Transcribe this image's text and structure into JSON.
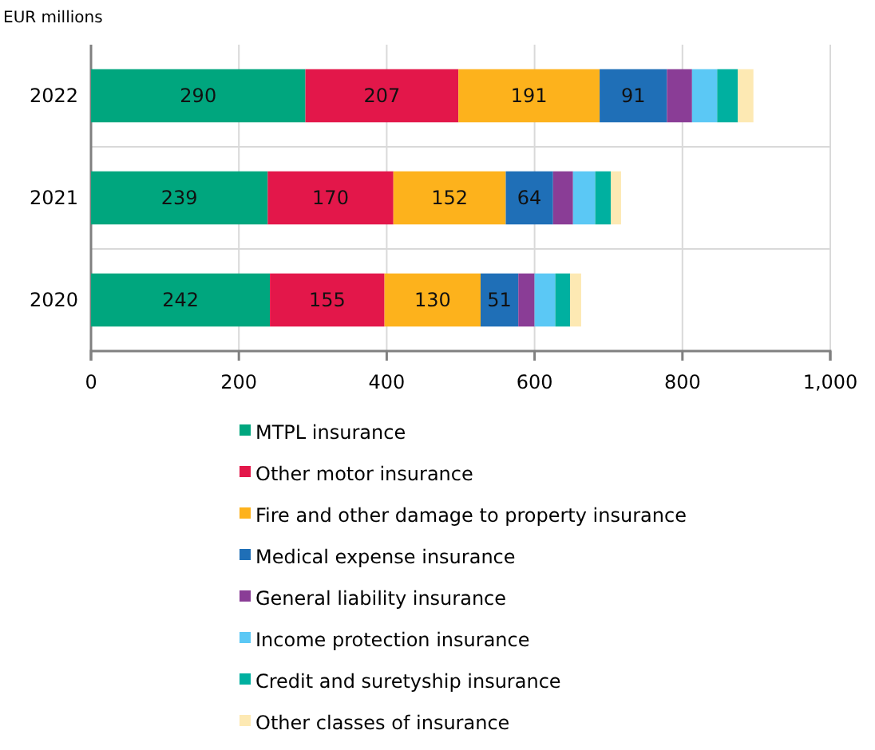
{
  "chart_data": {
    "type": "bar",
    "orientation": "horizontal",
    "stacked": true,
    "ylabel": "EUR millions",
    "categories": [
      "2022",
      "2021",
      "2020"
    ],
    "xlim": [
      0,
      1000
    ],
    "xticks": [
      0,
      200,
      400,
      600,
      800,
      {
        "value": 1000,
        "label": "1,000"
      }
    ],
    "grid": "x",
    "legend": "bottom",
    "series": [
      {
        "name": "MTPL insurance",
        "color": "#00a67e",
        "values": [
          290,
          239,
          242
        ],
        "value_labels": [
          "290",
          "239",
          "242"
        ]
      },
      {
        "name": "Other motor insurance",
        "color": "#e3174a",
        "values": [
          207,
          170,
          155
        ],
        "value_labels": [
          "207",
          "170",
          "155"
        ]
      },
      {
        "name": "Fire and other damage to property insurance",
        "color": "#fdb21c",
        "values": [
          191,
          152,
          130
        ],
        "value_labels": [
          "191",
          "152",
          "130"
        ]
      },
      {
        "name": "Medical expense insurance",
        "color": "#1f6fb7",
        "values": [
          91,
          64,
          51
        ],
        "value_labels": [
          "91",
          "64",
          "51"
        ]
      },
      {
        "name": "General liability insurance",
        "color": "#8a3d96",
        "values": [
          34,
          27,
          22
        ]
      },
      {
        "name": "Income protection insurance",
        "color": "#5bc8f5",
        "values": [
          34,
          30,
          28
        ]
      },
      {
        "name": "Credit and suretyship insurance",
        "color": "#00b0a0",
        "values": [
          28,
          21,
          20
        ]
      },
      {
        "name": "Other classes of insurance",
        "color": "#fde9b3",
        "values": [
          21,
          14,
          15
        ]
      }
    ]
  }
}
